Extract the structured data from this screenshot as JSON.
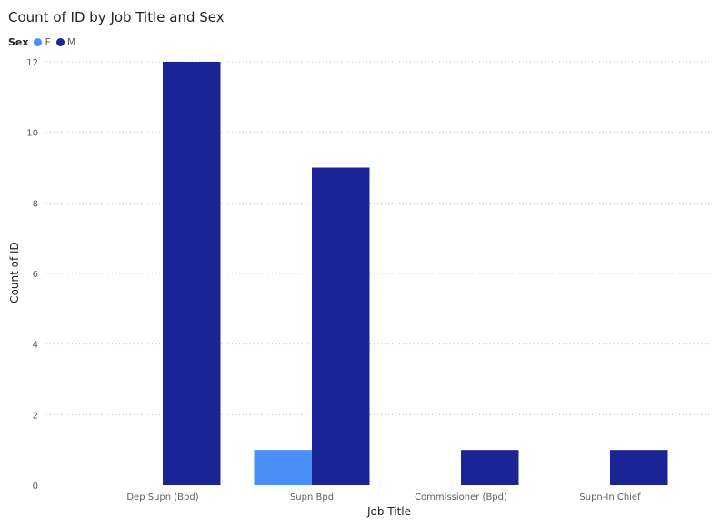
{
  "chart_data": {
    "type": "bar",
    "title": "Count of ID by Job Title and Sex",
    "xlabel": "Job Title",
    "ylabel": "Count of ID",
    "legend_title": "Sex",
    "legend_position": "top-left",
    "grid": true,
    "categories": [
      "Dep Supn (Bpd)",
      "Supn Bpd",
      "Commissioner (Bpd)",
      "Supn-In Chief"
    ],
    "ylim": [
      0,
      12
    ],
    "yticks": [
      0,
      2,
      4,
      6,
      8,
      10,
      12
    ],
    "series": [
      {
        "name": "F",
        "color": "#4a8ff7",
        "values": [
          0,
          1,
          0,
          0
        ]
      },
      {
        "name": "M",
        "color": "#1b2494",
        "values": [
          12,
          9,
          1,
          1
        ]
      }
    ]
  }
}
